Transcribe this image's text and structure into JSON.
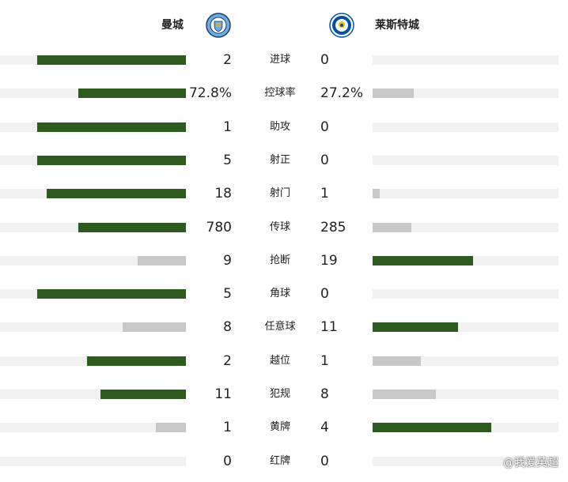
{
  "home": {
    "name": "曼城",
    "crest_icon": "manchester-city-crest"
  },
  "away": {
    "name": "莱斯特城",
    "crest_icon": "leicester-city-crest"
  },
  "colors": {
    "leader": "#2d5a1f",
    "trailer": "#c8c8c8",
    "track": "#f1f1f1"
  },
  "stats": [
    {
      "label": "进球",
      "home": "2",
      "away": "0",
      "home_fill": 0.8,
      "away_fill": 0.0,
      "leader": "home"
    },
    {
      "label": "控球率",
      "home": "72.8%",
      "away": "27.2%",
      "home_fill": 0.58,
      "away_fill": 0.22,
      "leader": "home"
    },
    {
      "label": "助攻",
      "home": "1",
      "away": "0",
      "home_fill": 0.8,
      "away_fill": 0.0,
      "leader": "home"
    },
    {
      "label": "射正",
      "home": "5",
      "away": "0",
      "home_fill": 0.8,
      "away_fill": 0.0,
      "leader": "home"
    },
    {
      "label": "射门",
      "home": "18",
      "away": "1",
      "home_fill": 0.75,
      "away_fill": 0.04,
      "leader": "home"
    },
    {
      "label": "传球",
      "home": "780",
      "away": "285",
      "home_fill": 0.58,
      "away_fill": 0.21,
      "leader": "home"
    },
    {
      "label": "抢断",
      "home": "9",
      "away": "19",
      "home_fill": 0.26,
      "away_fill": 0.54,
      "leader": "away"
    },
    {
      "label": "角球",
      "home": "5",
      "away": "0",
      "home_fill": 0.8,
      "away_fill": 0.0,
      "leader": "home"
    },
    {
      "label": "任意球",
      "home": "8",
      "away": "11",
      "home_fill": 0.34,
      "away_fill": 0.46,
      "leader": "away"
    },
    {
      "label": "越位",
      "home": "2",
      "away": "1",
      "home_fill": 0.53,
      "away_fill": 0.26,
      "leader": "home"
    },
    {
      "label": "犯规",
      "home": "11",
      "away": "8",
      "home_fill": 0.46,
      "away_fill": 0.34,
      "leader": "home"
    },
    {
      "label": "黄牌",
      "home": "1",
      "away": "4",
      "home_fill": 0.16,
      "away_fill": 0.64,
      "leader": "away"
    },
    {
      "label": "红牌",
      "home": "0",
      "away": "0",
      "home_fill": 0.0,
      "away_fill": 0.0,
      "leader": "none"
    }
  ],
  "watermark": "@我爱英超"
}
